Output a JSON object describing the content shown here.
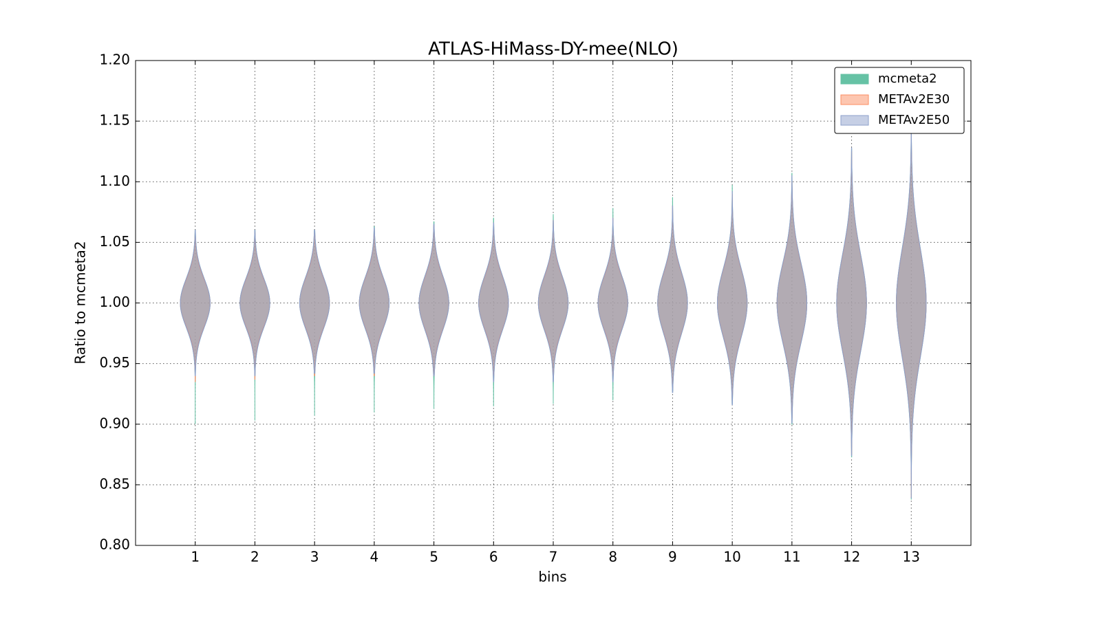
{
  "chart_data": {
    "type": "violin",
    "title": "ATLAS-HiMass-DY-mee(NLO)",
    "xlabel": "bins",
    "ylabel": "Ratio to mcmeta2",
    "categories": [
      "1",
      "2",
      "3",
      "4",
      "5",
      "6",
      "7",
      "8",
      "9",
      "10",
      "11",
      "12",
      "13"
    ],
    "xlim": [
      0,
      14
    ],
    "ylim": [
      0.8,
      1.2
    ],
    "yticks": [
      {
        "value": 0.8,
        "label": "0.80"
      },
      0.85,
      {
        "value": 0.9,
        "label": "0.90"
      },
      0.95,
      {
        "value": 1.0,
        "label": "1.00"
      },
      1.05,
      {
        "value": 1.1,
        "label": "1.10"
      },
      1.15,
      {
        "value": 1.2,
        "label": "1.20"
      }
    ],
    "grid": true,
    "legend": "upper right",
    "series": [
      {
        "name": "mcmeta2",
        "color": "#66c2a5",
        "center": [
          1,
          1,
          1,
          1,
          1,
          1,
          1,
          1,
          1,
          1,
          1,
          1,
          1
        ],
        "min": [
          0.9,
          0.903,
          0.907,
          0.91,
          0.913,
          0.915,
          0.917,
          0.92,
          0.927,
          0.917,
          0.9,
          0.873,
          0.838
        ],
        "max": [
          1.06,
          1.06,
          1.06,
          1.063,
          1.067,
          1.07,
          1.073,
          1.078,
          1.087,
          1.097,
          1.107,
          1.127,
          1.148
        ],
        "std": [
          0.02,
          0.02,
          0.021,
          0.021,
          0.022,
          0.022,
          0.022,
          0.022,
          0.025,
          0.028,
          0.033,
          0.04,
          0.045
        ]
      },
      {
        "name": "METAv2E30",
        "color": "#fc8d62",
        "center": [
          1,
          1,
          1,
          1,
          1,
          1,
          1,
          1,
          1,
          1,
          1,
          1,
          1
        ],
        "min": [
          0.935,
          0.937,
          0.94,
          0.94,
          0.94,
          0.94,
          0.94,
          0.94,
          0.93,
          0.92,
          0.905,
          0.875,
          0.84
        ],
        "max": [
          1.058,
          1.058,
          1.058,
          1.06,
          1.064,
          1.066,
          1.068,
          1.07,
          1.08,
          1.09,
          1.1,
          1.125,
          1.145
        ],
        "std": [
          0.019,
          0.019,
          0.02,
          0.02,
          0.021,
          0.021,
          0.021,
          0.021,
          0.024,
          0.027,
          0.032,
          0.039,
          0.044
        ]
      },
      {
        "name": "METAv2E50",
        "color": "#8da0cb",
        "center": [
          1,
          1,
          1,
          1,
          1,
          1,
          1,
          1,
          1,
          1,
          1,
          1,
          1
        ],
        "min": [
          0.94,
          0.94,
          0.942,
          0.942,
          0.94,
          0.935,
          0.935,
          0.935,
          0.926,
          0.916,
          0.901,
          0.874,
          0.839
        ],
        "max": [
          1.06,
          1.06,
          1.06,
          1.062,
          1.065,
          1.066,
          1.068,
          1.07,
          1.08,
          1.092,
          1.105,
          1.128,
          1.148
        ],
        "std": [
          0.02,
          0.02,
          0.021,
          0.021,
          0.022,
          0.022,
          0.022,
          0.022,
          0.025,
          0.028,
          0.033,
          0.04,
          0.045
        ]
      }
    ]
  }
}
